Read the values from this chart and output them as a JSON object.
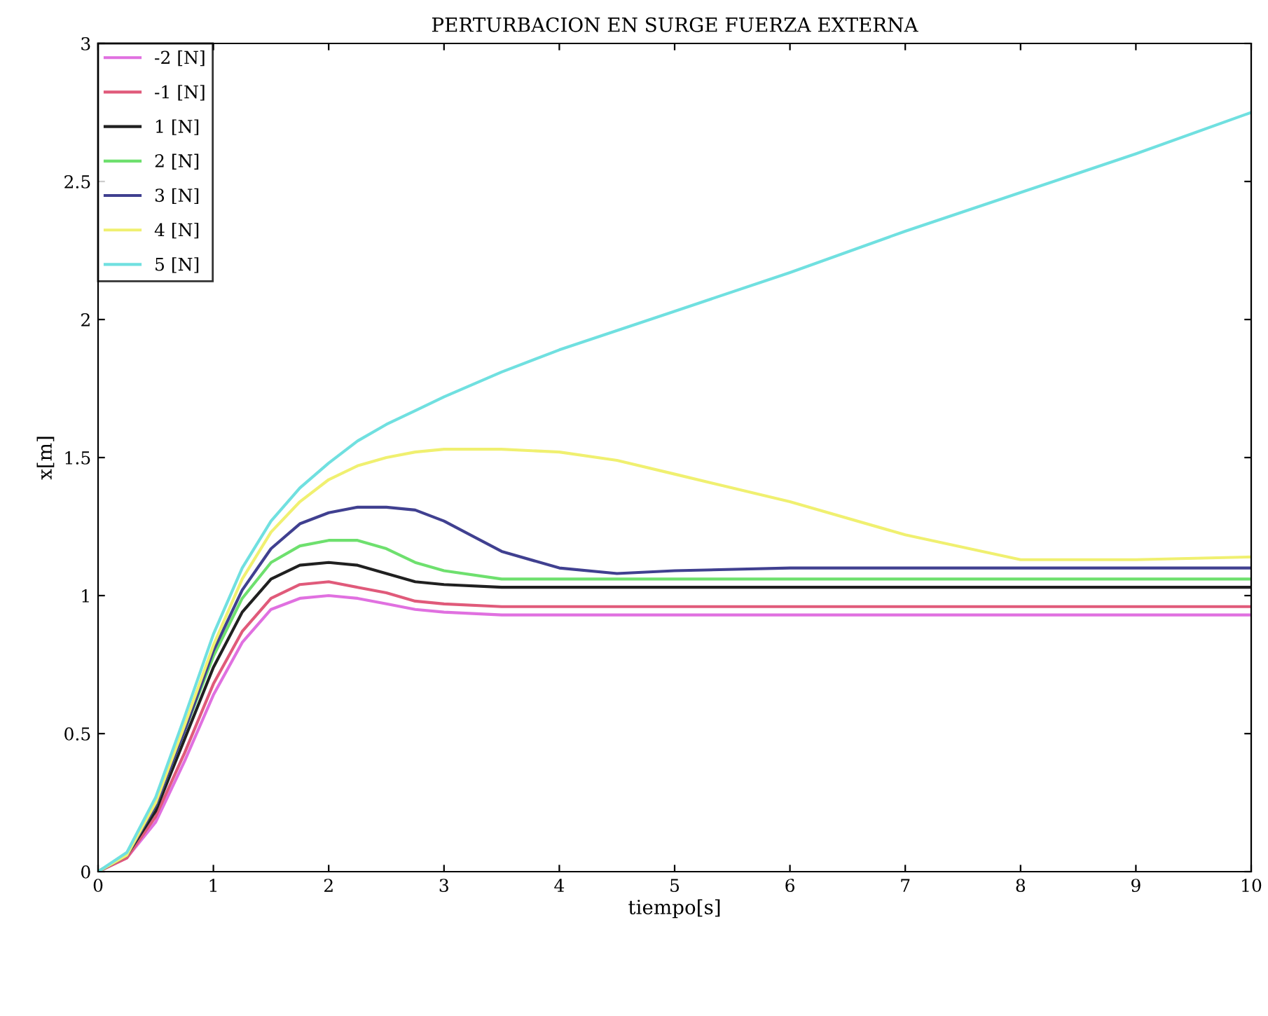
{
  "chart_data": {
    "type": "line",
    "title": "PERTURBACION EN SURGE FUERZA EXTERNA",
    "xlabel": "tiempo[s]",
    "ylabel": "x[m]",
    "x": [
      0,
      0.25,
      0.5,
      0.75,
      1,
      1.25,
      1.5,
      1.75,
      2,
      2.25,
      2.5,
      2.75,
      3,
      3.5,
      4,
      4.5,
      5,
      6,
      7,
      8,
      9,
      10
    ],
    "series": [
      {
        "name": "-2 [N]",
        "color": "#e070e0",
        "values": [
          0,
          0.05,
          0.18,
          0.4,
          0.64,
          0.83,
          0.95,
          0.99,
          1.0,
          0.99,
          0.97,
          0.95,
          0.94,
          0.93,
          0.93,
          0.93,
          0.93,
          0.93,
          0.93,
          0.93,
          0.93,
          0.93
        ]
      },
      {
        "name": "-1 [N]",
        "color": "#e05a7a",
        "values": [
          0,
          0.05,
          0.2,
          0.43,
          0.68,
          0.87,
          0.99,
          1.04,
          1.05,
          1.03,
          1.01,
          0.98,
          0.97,
          0.96,
          0.96,
          0.96,
          0.96,
          0.96,
          0.96,
          0.96,
          0.96,
          0.96
        ]
      },
      {
        "name": "1 [N]",
        "color": "#202020",
        "values": [
          0,
          0.06,
          0.22,
          0.48,
          0.74,
          0.94,
          1.06,
          1.11,
          1.12,
          1.11,
          1.08,
          1.05,
          1.04,
          1.03,
          1.03,
          1.03,
          1.03,
          1.03,
          1.03,
          1.03,
          1.03,
          1.03
        ]
      },
      {
        "name": "2 [N]",
        "color": "#6ee06e",
        "values": [
          0,
          0.06,
          0.24,
          0.51,
          0.78,
          0.99,
          1.12,
          1.18,
          1.2,
          1.2,
          1.17,
          1.12,
          1.09,
          1.06,
          1.06,
          1.06,
          1.06,
          1.06,
          1.06,
          1.06,
          1.06,
          1.06
        ]
      },
      {
        "name": "3 [N]",
        "color": "#404090",
        "values": [
          0,
          0.06,
          0.24,
          0.51,
          0.8,
          1.02,
          1.17,
          1.26,
          1.3,
          1.32,
          1.32,
          1.31,
          1.27,
          1.16,
          1.1,
          1.08,
          1.09,
          1.1,
          1.1,
          1.1,
          1.1,
          1.1
        ]
      },
      {
        "name": "4 [N]",
        "color": "#f0f070",
        "values": [
          0,
          0.06,
          0.25,
          0.53,
          0.82,
          1.06,
          1.23,
          1.34,
          1.42,
          1.47,
          1.5,
          1.52,
          1.53,
          1.53,
          1.52,
          1.49,
          1.44,
          1.34,
          1.22,
          1.13,
          1.13,
          1.14
        ]
      },
      {
        "name": "5 [N]",
        "color": "#70e0e0",
        "values": [
          0,
          0.07,
          0.27,
          0.56,
          0.86,
          1.1,
          1.27,
          1.39,
          1.48,
          1.56,
          1.62,
          1.67,
          1.72,
          1.81,
          1.89,
          1.96,
          2.03,
          2.17,
          2.32,
          2.46,
          2.6,
          2.75
        ]
      }
    ],
    "xlim": [
      0,
      10
    ],
    "ylim": [
      0,
      3
    ],
    "xticks": [
      0,
      1,
      2,
      3,
      4,
      5,
      6,
      7,
      8,
      9,
      10
    ],
    "yticks": [
      0,
      0.5,
      1,
      1.5,
      2,
      2.5,
      3
    ],
    "legend": "top left",
    "grid": false,
    "line_style": "solid",
    "marker": "none"
  }
}
